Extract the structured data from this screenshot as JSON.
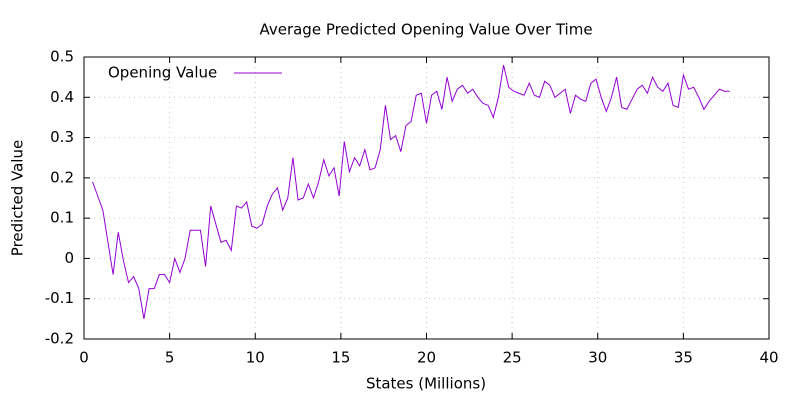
{
  "chart_data": {
    "type": "line",
    "title": "Average Predicted Opening Value Over Time",
    "x_label": "States (Millions)",
    "y_label": "Predicted Value",
    "x": [
      0.5,
      0.8,
      1.1,
      1.4,
      1.7,
      2.0,
      2.3,
      2.6,
      2.9,
      3.2,
      3.5,
      3.8,
      4.1,
      4.4,
      4.7,
      5.0,
      5.3,
      5.6,
      5.9,
      6.2,
      6.5,
      6.8,
      7.1,
      7.4,
      7.7,
      8.0,
      8.3,
      8.6,
      8.9,
      9.2,
      9.5,
      9.8,
      10.1,
      10.4,
      10.7,
      11.0,
      11.3,
      11.6,
      11.9,
      12.2,
      12.5,
      12.8,
      13.1,
      13.4,
      13.7,
      14.0,
      14.3,
      14.6,
      14.9,
      15.2,
      15.5,
      15.8,
      16.1,
      16.4,
      16.7,
      17.0,
      17.3,
      17.6,
      17.9,
      18.2,
      18.5,
      18.8,
      19.1,
      19.4,
      19.7,
      20.0,
      20.3,
      20.6,
      20.9,
      21.2,
      21.5,
      21.8,
      22.1,
      22.4,
      22.7,
      23.0,
      23.3,
      23.6,
      23.9,
      24.2,
      24.5,
      24.8,
      25.1,
      25.4,
      25.7,
      26.0,
      26.3,
      26.6,
      26.9,
      27.2,
      27.5,
      27.8,
      28.1,
      28.4,
      28.7,
      29.0,
      29.3,
      29.6,
      29.9,
      30.2,
      30.5,
      30.8,
      31.1,
      31.4,
      31.7,
      32.0,
      32.3,
      32.6,
      32.9,
      33.2,
      33.5,
      33.8,
      34.1,
      34.4,
      34.7,
      35.0,
      35.3,
      35.6,
      35.9,
      36.2,
      36.5,
      36.8,
      37.1,
      37.4,
      37.7
    ],
    "series": [
      {
        "name": "Opening Value",
        "color": "#9400d3",
        "values": [
          0.19,
          0.155,
          0.12,
          0.04,
          -0.04,
          0.065,
          -0.005,
          -0.06,
          -0.045,
          -0.075,
          -0.15,
          -0.075,
          -0.075,
          -0.04,
          -0.04,
          -0.06,
          0.0,
          -0.035,
          0.0,
          0.07,
          0.07,
          0.07,
          -0.02,
          0.13,
          0.085,
          0.04,
          0.045,
          0.02,
          0.13,
          0.125,
          0.14,
          0.08,
          0.075,
          0.085,
          0.13,
          0.16,
          0.175,
          0.12,
          0.15,
          0.25,
          0.145,
          0.15,
          0.185,
          0.15,
          0.19,
          0.245,
          0.205,
          0.225,
          0.155,
          0.29,
          0.215,
          0.25,
          0.23,
          0.27,
          0.22,
          0.225,
          0.27,
          0.38,
          0.295,
          0.305,
          0.265,
          0.33,
          0.34,
          0.405,
          0.41,
          0.335,
          0.405,
          0.415,
          0.37,
          0.45,
          0.39,
          0.42,
          0.43,
          0.41,
          0.42,
          0.4,
          0.385,
          0.38,
          0.35,
          0.4,
          0.48,
          0.425,
          0.415,
          0.41,
          0.405,
          0.435,
          0.405,
          0.4,
          0.44,
          0.43,
          0.4,
          0.41,
          0.42,
          0.36,
          0.405,
          0.395,
          0.39,
          0.435,
          0.445,
          0.4,
          0.365,
          0.4,
          0.45,
          0.375,
          0.37,
          0.395,
          0.42,
          0.43,
          0.41,
          0.45,
          0.425,
          0.415,
          0.435,
          0.38,
          0.375,
          0.455,
          0.42,
          0.425,
          0.4,
          0.37,
          0.39,
          0.405,
          0.42,
          0.415,
          0.415
        ]
      }
    ],
    "xlim": [
      0,
      40
    ],
    "xticks": [
      0,
      5,
      10,
      15,
      20,
      25,
      30,
      35,
      40
    ],
    "ylim": [
      -0.2,
      0.5
    ],
    "yticks": [
      -0.2,
      -0.1,
      0,
      0.1,
      0.2,
      0.3,
      0.4,
      0.5
    ],
    "grid": true,
    "legend": "top-left"
  }
}
